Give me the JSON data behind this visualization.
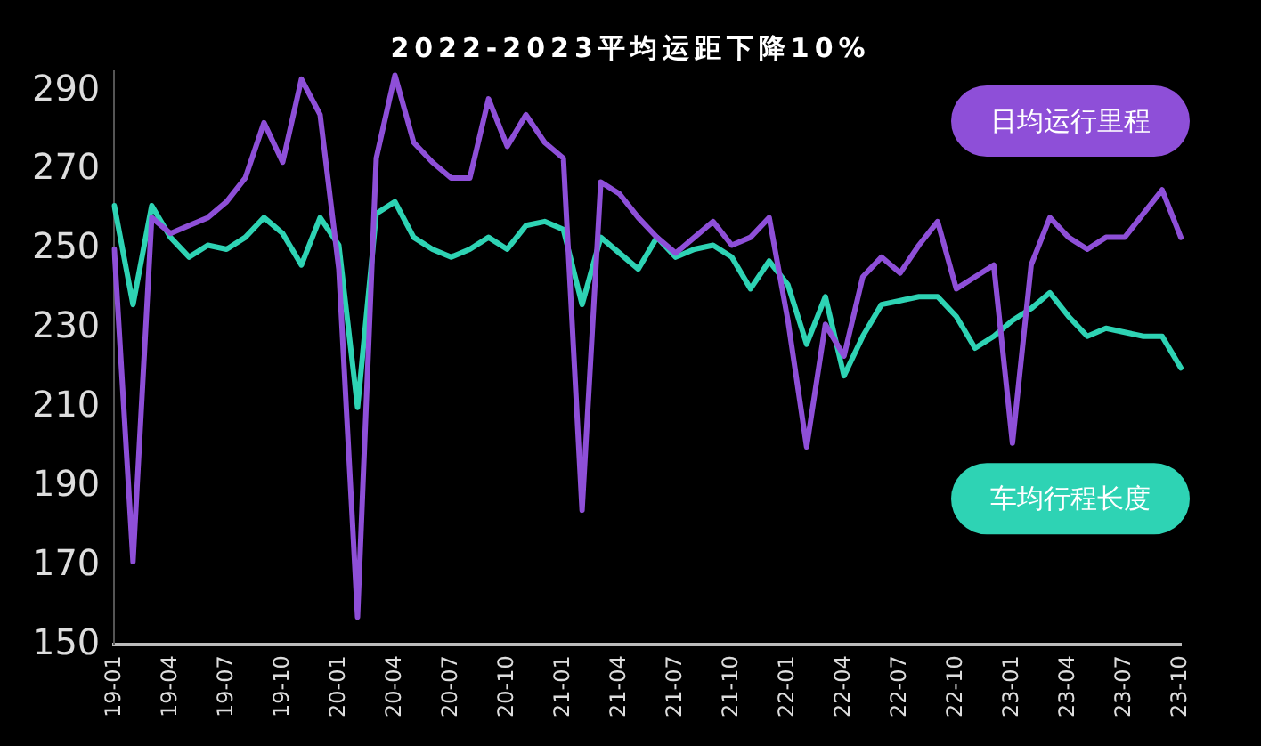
{
  "chart_data": {
    "type": "line",
    "title": "2022-2023平均运距下降10%",
    "categories": [
      "19-01",
      null,
      null,
      "19-04",
      null,
      null,
      "19-07",
      null,
      null,
      "19-10",
      null,
      null,
      "20-01",
      null,
      null,
      "20-04",
      null,
      null,
      "20-07",
      null,
      null,
      "20-10",
      null,
      null,
      "21-01",
      null,
      null,
      "21-04",
      null,
      null,
      "21-07",
      null,
      null,
      "21-10",
      null,
      null,
      "22-01",
      null,
      null,
      "22-04",
      null,
      null,
      "22-07",
      null,
      null,
      "22-10",
      null,
      null,
      "23-01",
      null,
      null,
      "23-04",
      null,
      null,
      "23-07",
      null,
      null,
      "23-10"
    ],
    "series": [
      {
        "name": "日均运行里程",
        "color": "#8e4fd8",
        "values": [
          250,
          171,
          258,
          254,
          256,
          258,
          262,
          268,
          282,
          272,
          293,
          284,
          245,
          157,
          273,
          294,
          277,
          272,
          268,
          268,
          288,
          276,
          284,
          277,
          273,
          184,
          267,
          264,
          258,
          253,
          249,
          253,
          257,
          251,
          253,
          258,
          232,
          200,
          231,
          223,
          243,
          248,
          244,
          251,
          257,
          240,
          243,
          246,
          201,
          246,
          258,
          253,
          250,
          253,
          253,
          259,
          265,
          253
        ]
      },
      {
        "name": "车均行程长度",
        "color": "#2ed3b4",
        "values": [
          261,
          236,
          261,
          253,
          248,
          251,
          250,
          253,
          258,
          254,
          246,
          258,
          251,
          210,
          259,
          262,
          253,
          250,
          248,
          250,
          253,
          250,
          256,
          257,
          255,
          236,
          253,
          249,
          245,
          253,
          248,
          250,
          251,
          248,
          240,
          247,
          241,
          226,
          238,
          218,
          228,
          236,
          237,
          238,
          238,
          233,
          225,
          228,
          232,
          235,
          239,
          233,
          228,
          230,
          229,
          228,
          228,
          220
        ]
      }
    ],
    "ylim": [
      150,
      295
    ],
    "yticks": [
      150,
      170,
      190,
      210,
      230,
      250,
      270,
      290
    ],
    "grid": false,
    "legend": "right",
    "marker": "none",
    "line_style": "solid"
  }
}
